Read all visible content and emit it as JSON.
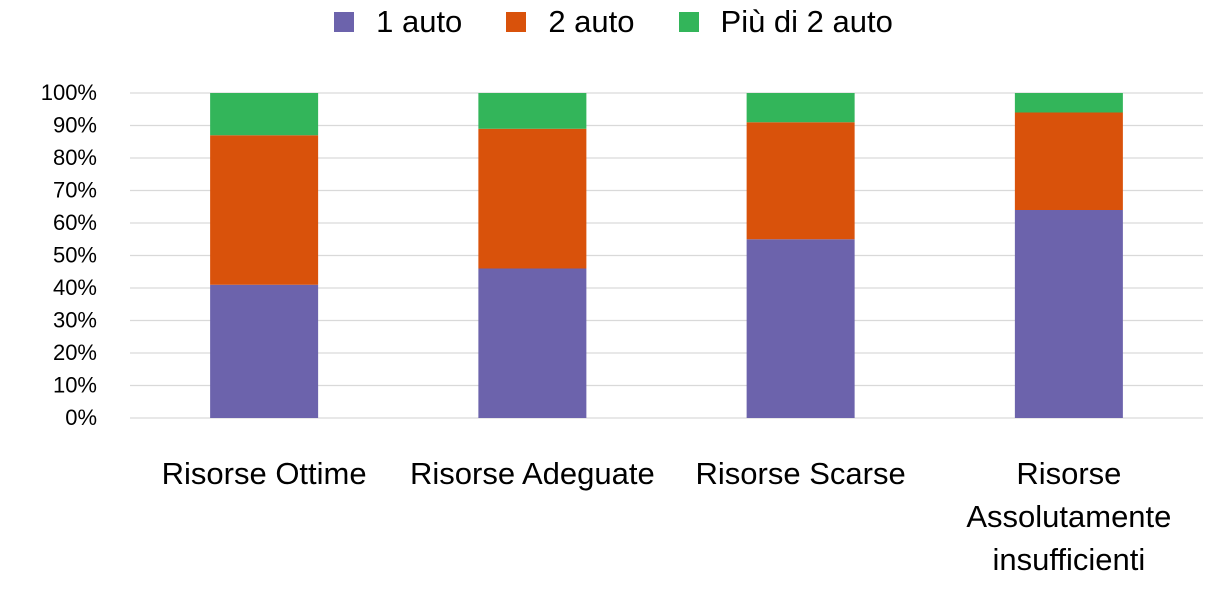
{
  "chart_data": {
    "type": "stacked_bar",
    "categories": [
      "Risorse Ottime",
      "Risorse Adeguate",
      "Risorse Scarse",
      "Risorse Assolutamente insufficienti"
    ],
    "series": [
      {
        "name": "1 auto",
        "color": "#6c63ac",
        "values": [
          41,
          46,
          55,
          64
        ]
      },
      {
        "name": "2 auto",
        "color": "#d9520b",
        "values": [
          46,
          43,
          36,
          30
        ]
      },
      {
        "name": "Più di 2 auto",
        "color": "#33b55a",
        "values": [
          13,
          11,
          9,
          6
        ]
      }
    ],
    "ylim": [
      0,
      100
    ],
    "yticks": [
      {
        "value": 0,
        "label": "0%"
      },
      {
        "value": 10,
        "label": "10%"
      },
      {
        "value": 20,
        "label": "20%"
      },
      {
        "value": 30,
        "label": "30%"
      },
      {
        "value": 40,
        "label": "40%"
      },
      {
        "value": 50,
        "label": "50%"
      },
      {
        "value": 60,
        "label": "60%"
      },
      {
        "value": 70,
        "label": "70%"
      },
      {
        "value": 80,
        "label": "80%"
      },
      {
        "value": 90,
        "label": "90%"
      },
      {
        "value": 100,
        "label": "100%"
      }
    ],
    "grid": true,
    "legend": "top"
  }
}
